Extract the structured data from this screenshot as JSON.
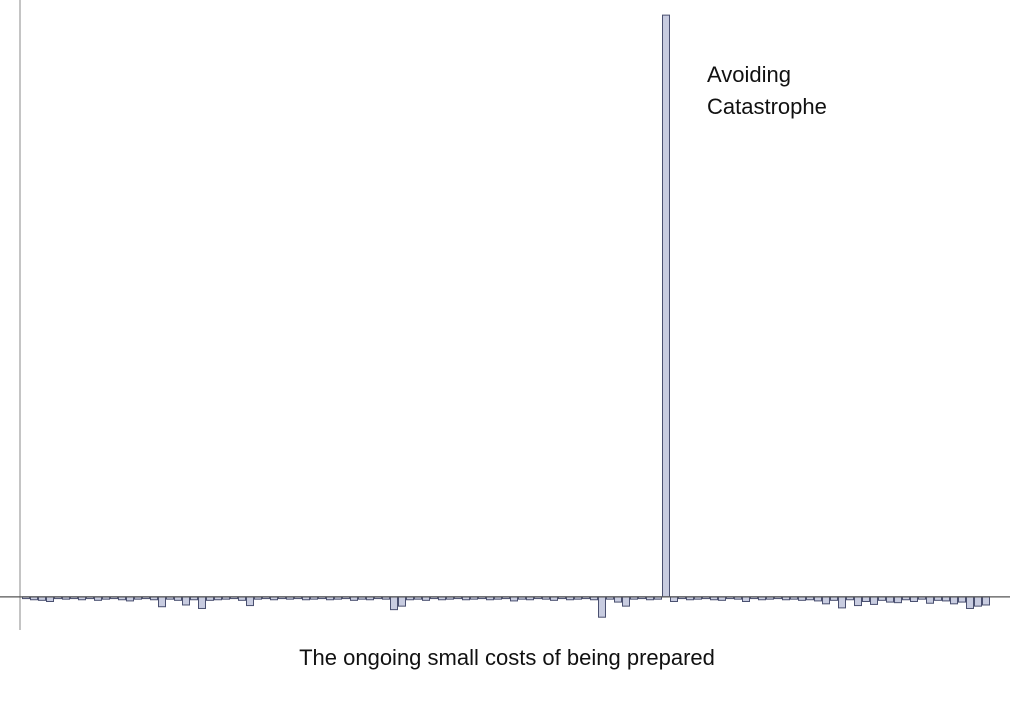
{
  "chart_data": {
    "type": "bar",
    "annotations": [
      "Avoiding",
      "Catastrophe"
    ],
    "x_label": "The ongoing small costs of being prepared",
    "values": [
      -0.3,
      -0.5,
      -0.6,
      -0.8,
      -0.3,
      -0.4,
      -0.3,
      -0.5,
      -0.3,
      -0.6,
      -0.4,
      -0.3,
      -0.5,
      -0.7,
      -0.4,
      -0.3,
      -0.5,
      -1.7,
      -0.4,
      -0.6,
      -1.4,
      -0.5,
      -2.0,
      -0.6,
      -0.5,
      -0.4,
      -0.3,
      -0.6,
      -1.5,
      -0.4,
      -0.3,
      -0.5,
      -0.3,
      -0.4,
      -0.3,
      -0.5,
      -0.4,
      -0.3,
      -0.5,
      -0.4,
      -0.3,
      -0.6,
      -0.4,
      -0.5,
      -0.3,
      -0.4,
      -2.2,
      -1.6,
      -0.5,
      -0.4,
      -0.6,
      -0.3,
      -0.5,
      -0.4,
      -0.3,
      -0.5,
      -0.4,
      -0.3,
      -0.5,
      -0.4,
      -0.3,
      -0.7,
      -0.4,
      -0.5,
      -0.3,
      -0.4,
      -0.6,
      -0.3,
      -0.5,
      -0.4,
      -0.3,
      -0.5,
      -3.5,
      -0.4,
      -0.9,
      -1.6,
      -0.4,
      -0.3,
      -0.5,
      -0.4,
      100,
      -0.8,
      -0.3,
      -0.5,
      -0.4,
      -0.3,
      -0.5,
      -0.6,
      -0.3,
      -0.4,
      -0.8,
      -0.3,
      -0.5,
      -0.4,
      -0.3,
      -0.5,
      -0.4,
      -0.6,
      -0.5,
      -0.7,
      -1.2,
      -0.6,
      -1.9,
      -0.5,
      -1.5,
      -0.8,
      -1.3,
      -0.6,
      -0.9,
      -1.0,
      -0.5,
      -0.8,
      -0.4,
      -1.1,
      -0.6,
      -0.7,
      -1.2,
      -0.9,
      -2.0,
      -1.6,
      -1.4
    ],
    "color": "#c8cce0",
    "ylim": [
      -5.7,
      102.6
    ],
    "grid": false
  }
}
